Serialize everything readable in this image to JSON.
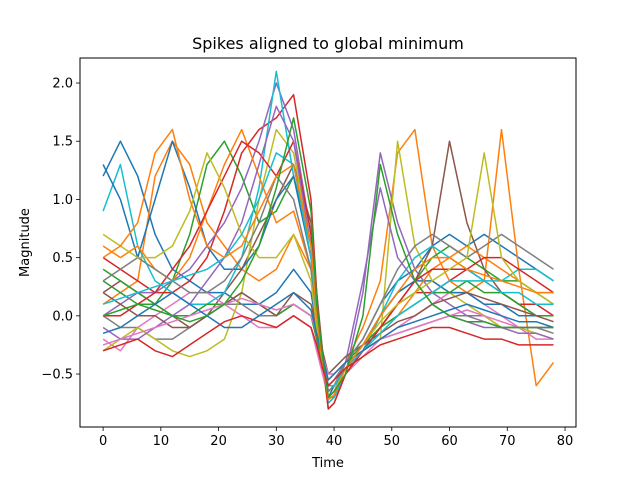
{
  "chart_data": {
    "type": "line",
    "title": "Spikes aligned to global minimum",
    "xlabel": "Time",
    "ylabel": "Magnitude",
    "xlim": [
      -4.0,
      81.9
    ],
    "ylim": [
      -0.955,
      2.215
    ],
    "xticks": [
      0,
      10,
      20,
      30,
      40,
      50,
      60,
      70,
      80
    ],
    "yticks": [
      -0.5,
      0.0,
      0.5,
      1.0,
      1.5,
      2.0
    ],
    "xtick_labels": [
      "0",
      "10",
      "20",
      "30",
      "40",
      "50",
      "60",
      "70",
      "80"
    ],
    "ytick_labels": [
      "−0.5",
      "0.0",
      "0.5",
      "1.0",
      "1.5",
      "2.0"
    ],
    "grid": false,
    "legend": "none",
    "minimum_alignment_x": 39,
    "series_colors": [
      "#1f77b4",
      "#ff7f0e",
      "#2ca02c",
      "#d62728",
      "#9467bd",
      "#8c564b",
      "#e377c2",
      "#7f7f7f",
      "#bcbd22",
      "#17becf"
    ],
    "x": [
      0,
      3,
      6,
      9,
      12,
      15,
      18,
      21,
      24,
      27,
      30,
      33,
      36,
      37,
      38,
      39,
      40,
      42,
      45,
      48,
      51,
      54,
      57,
      60,
      63,
      66,
      69,
      72,
      75,
      78
    ],
    "series": [
      {
        "values": [
          1.2,
          1.5,
          1.2,
          0.7,
          0.4,
          0.3,
          0.2,
          0.2,
          0.1,
          0.1,
          0.2,
          0.4,
          0.2,
          -0.1,
          -0.4,
          -0.7,
          -0.6,
          -0.4,
          -0.2,
          0.1,
          0.3,
          0.4,
          0.6,
          0.7,
          0.6,
          0.7,
          0.6,
          0.5,
          0.4,
          0.3
        ]
      },
      {
        "values": [
          0.1,
          0.2,
          0.3,
          1.2,
          1.5,
          1.3,
          0.8,
          0.6,
          0.4,
          0.3,
          0.4,
          0.7,
          0.4,
          0.0,
          -0.3,
          -0.6,
          -0.6,
          -0.4,
          -0.1,
          0.3,
          1.4,
          1.6,
          0.6,
          0.3,
          0.2,
          0.3,
          1.6,
          0.4,
          -0.6,
          -0.4
        ]
      },
      {
        "values": [
          0.3,
          0.2,
          0.1,
          0.1,
          0.3,
          0.7,
          1.3,
          1.5,
          1.2,
          0.8,
          0.9,
          1.2,
          0.6,
          0.1,
          -0.3,
          -0.7,
          -0.7,
          -0.5,
          -0.3,
          0.0,
          0.2,
          0.3,
          0.5,
          0.6,
          0.5,
          0.4,
          0.3,
          0.3,
          0.2,
          0.1
        ]
      },
      {
        "values": [
          0.5,
          0.4,
          0.3,
          0.2,
          0.2,
          0.3,
          0.5,
          0.9,
          1.4,
          1.6,
          1.7,
          1.9,
          1.0,
          0.2,
          -0.4,
          -0.8,
          -0.75,
          -0.5,
          -0.3,
          -0.1,
          0.1,
          0.2,
          0.2,
          0.3,
          0.4,
          0.3,
          0.2,
          0.1,
          0.1,
          0.0
        ]
      },
      {
        "values": [
          0.0,
          0.1,
          0.2,
          0.2,
          0.3,
          0.4,
          0.6,
          0.8,
          1.1,
          1.5,
          2.0,
          1.6,
          0.7,
          0.1,
          -0.4,
          -0.75,
          -0.7,
          -0.5,
          0.2,
          1.4,
          0.8,
          0.4,
          0.2,
          0.1,
          0.0,
          0.0,
          -0.1,
          -0.1,
          -0.1,
          -0.1
        ]
      },
      {
        "values": [
          0.2,
          0.3,
          0.2,
          0.1,
          0.0,
          -0.1,
          0.0,
          0.2,
          0.4,
          0.7,
          1.0,
          1.3,
          0.8,
          0.2,
          -0.3,
          -0.65,
          -0.6,
          -0.45,
          -0.3,
          -0.1,
          0.1,
          0.3,
          0.6,
          1.5,
          0.8,
          0.4,
          0.2,
          0.1,
          0.0,
          0.0
        ]
      },
      {
        "values": [
          -0.2,
          -0.3,
          -0.1,
          0.0,
          0.1,
          0.2,
          0.2,
          0.1,
          0.0,
          -0.1,
          -0.1,
          0.0,
          -0.1,
          -0.3,
          -0.5,
          -0.7,
          -0.65,
          -0.5,
          -0.35,
          -0.2,
          -0.1,
          0.0,
          0.1,
          0.2,
          0.2,
          0.1,
          0.0,
          -0.1,
          -0.2,
          -0.2
        ]
      },
      {
        "values": [
          0.0,
          -0.1,
          -0.1,
          -0.2,
          -0.2,
          -0.1,
          0.0,
          0.1,
          0.1,
          0.0,
          0.0,
          0.1,
          0.0,
          -0.2,
          -0.45,
          -0.6,
          -0.55,
          -0.4,
          -0.3,
          -0.2,
          -0.15,
          -0.1,
          -0.05,
          0.0,
          0.0,
          -0.05,
          -0.1,
          -0.1,
          -0.1,
          -0.15
        ]
      },
      {
        "values": [
          -0.3,
          -0.2,
          -0.1,
          -0.2,
          -0.3,
          -0.35,
          -0.3,
          -0.2,
          0.2,
          1.0,
          1.6,
          1.4,
          0.6,
          0.0,
          -0.4,
          -0.7,
          -0.65,
          -0.45,
          -0.3,
          -0.2,
          1.5,
          0.6,
          0.3,
          0.2,
          0.1,
          0.0,
          -0.1,
          -0.1,
          -0.15,
          -0.2
        ]
      },
      {
        "values": [
          0.9,
          1.3,
          0.6,
          0.3,
          0.2,
          0.1,
          0.1,
          0.2,
          0.5,
          1.1,
          2.1,
          1.2,
          0.5,
          0.0,
          -0.4,
          -0.75,
          -0.7,
          -0.5,
          -0.3,
          0.0,
          0.3,
          0.5,
          0.6,
          0.5,
          0.4,
          0.3,
          0.3,
          0.4,
          0.4,
          0.3
        ]
      },
      {
        "values": [
          1.3,
          1.0,
          0.5,
          1.0,
          1.5,
          1.1,
          0.6,
          0.4,
          0.4,
          0.6,
          1.0,
          1.2,
          0.5,
          0.0,
          -0.35,
          -0.65,
          -0.6,
          -0.45,
          -0.25,
          0.0,
          0.2,
          0.3,
          0.3,
          0.2,
          0.2,
          0.1,
          0.1,
          0.0,
          0.0,
          0.0
        ]
      },
      {
        "values": [
          0.6,
          0.5,
          0.6,
          0.4,
          0.3,
          0.5,
          0.9,
          1.3,
          1.6,
          1.2,
          0.8,
          0.9,
          0.4,
          -0.05,
          -0.4,
          -0.7,
          -0.65,
          -0.5,
          -0.3,
          -0.1,
          0.0,
          0.2,
          0.4,
          0.5,
          0.6,
          0.5,
          0.4,
          0.3,
          0.2,
          0.2
        ]
      },
      {
        "values": [
          0.4,
          0.3,
          0.2,
          0.1,
          0.0,
          0.0,
          0.1,
          0.1,
          0.2,
          0.1,
          0.0,
          0.1,
          0.0,
          -0.2,
          -0.4,
          -0.55,
          -0.5,
          -0.4,
          -0.25,
          -0.1,
          0.0,
          0.1,
          0.2,
          0.2,
          0.3,
          0.2,
          0.2,
          0.1,
          0.0,
          0.0
        ]
      },
      {
        "values": [
          0.0,
          0.0,
          0.1,
          0.2,
          0.4,
          0.6,
          0.9,
          1.2,
          1.5,
          1.4,
          1.2,
          1.5,
          0.7,
          0.1,
          -0.35,
          -0.8,
          -0.75,
          -0.5,
          -0.3,
          -0.1,
          0.1,
          0.3,
          0.4,
          0.4,
          0.4,
          0.5,
          0.5,
          0.4,
          0.3,
          0.2
        ]
      },
      {
        "values": [
          -0.1,
          -0.2,
          -0.2,
          -0.1,
          0.0,
          0.1,
          0.3,
          0.5,
          0.8,
          1.3,
          1.8,
          1.5,
          0.6,
          0.0,
          -0.4,
          -0.7,
          -0.65,
          -0.4,
          0.3,
          1.1,
          0.5,
          0.3,
          0.1,
          0.0,
          -0.05,
          -0.1,
          -0.1,
          -0.15,
          -0.15,
          -0.2
        ]
      },
      {
        "values": [
          0.2,
          0.1,
          0.0,
          0.0,
          -0.1,
          -0.1,
          0.0,
          0.1,
          0.2,
          0.1,
          0.0,
          0.2,
          0.1,
          -0.1,
          -0.3,
          -0.5,
          -0.45,
          -0.35,
          -0.25,
          -0.15,
          -0.05,
          0.0,
          0.1,
          0.15,
          0.2,
          0.15,
          0.1,
          0.05,
          0.0,
          -0.05
        ]
      },
      {
        "values": [
          -0.25,
          -0.2,
          -0.15,
          -0.1,
          -0.05,
          0.0,
          0.05,
          0.1,
          0.15,
          0.1,
          0.05,
          0.1,
          0.0,
          -0.15,
          -0.35,
          -0.5,
          -0.5,
          -0.4,
          -0.3,
          -0.2,
          -0.15,
          -0.1,
          -0.05,
          0.0,
          0.05,
          0.0,
          -0.05,
          -0.1,
          -0.1,
          -0.1
        ]
      },
      {
        "values": [
          0.3,
          0.4,
          0.5,
          0.4,
          0.3,
          0.2,
          0.2,
          0.3,
          0.5,
          0.8,
          1.2,
          1.0,
          0.4,
          -0.05,
          -0.4,
          -0.65,
          -0.6,
          -0.4,
          -0.2,
          0.1,
          0.4,
          0.6,
          0.7,
          0.6,
          0.5,
          0.6,
          0.7,
          0.6,
          0.5,
          0.4
        ]
      },
      {
        "values": [
          0.7,
          0.6,
          0.5,
          0.5,
          0.6,
          0.9,
          1.4,
          1.1,
          0.7,
          0.5,
          0.5,
          0.7,
          0.3,
          -0.1,
          -0.4,
          -0.7,
          -0.65,
          -0.45,
          -0.25,
          -0.05,
          0.1,
          0.2,
          0.3,
          0.4,
          0.5,
          1.4,
          0.5,
          0.3,
          0.2,
          0.1
        ]
      },
      {
        "values": [
          0.1,
          0.15,
          0.2,
          0.25,
          0.3,
          0.35,
          0.4,
          0.5,
          0.7,
          1.0,
          1.4,
          1.3,
          0.5,
          0.0,
          -0.35,
          -0.6,
          -0.6,
          -0.45,
          -0.3,
          -0.15,
          0.0,
          0.1,
          0.2,
          0.3,
          0.3,
          0.3,
          0.2,
          0.2,
          0.1,
          0.1
        ]
      },
      {
        "values": [
          -0.15,
          -0.1,
          0.0,
          0.1,
          0.2,
          0.1,
          0.0,
          -0.1,
          -0.1,
          0.0,
          0.1,
          0.2,
          0.05,
          -0.15,
          -0.35,
          -0.55,
          -0.5,
          -0.4,
          -0.3,
          -0.2,
          -0.1,
          -0.05,
          0.0,
          0.05,
          0.1,
          0.05,
          0.0,
          -0.05,
          -0.05,
          -0.1
        ]
      },
      {
        "values": [
          0.5,
          0.6,
          0.8,
          1.4,
          1.6,
          1.0,
          0.6,
          0.5,
          0.6,
          0.9,
          1.2,
          1.3,
          0.6,
          0.0,
          -0.4,
          -0.72,
          -0.68,
          -0.45,
          -0.25,
          0.0,
          0.2,
          0.4,
          0.5,
          0.5,
          0.4,
          0.35,
          0.3,
          0.25,
          0.2,
          0.2
        ]
      },
      {
        "values": [
          0.0,
          0.05,
          0.1,
          0.05,
          0.0,
          -0.05,
          0.0,
          0.1,
          0.3,
          0.6,
          1.1,
          1.7,
          0.9,
          0.1,
          -0.35,
          -0.7,
          -0.65,
          -0.5,
          0.0,
          1.3,
          0.7,
          0.3,
          0.1,
          0.0,
          -0.05,
          -0.05,
          -0.1,
          -0.1,
          -0.1,
          -0.1
        ]
      },
      {
        "values": [
          -0.3,
          -0.25,
          -0.2,
          -0.3,
          -0.35,
          -0.25,
          -0.15,
          -0.05,
          0.0,
          -0.05,
          -0.1,
          0.0,
          -0.1,
          -0.25,
          -0.45,
          -0.6,
          -0.55,
          -0.45,
          -0.35,
          -0.25,
          -0.2,
          -0.15,
          -0.1,
          -0.1,
          -0.15,
          -0.2,
          -0.2,
          -0.25,
          -0.25,
          -0.25
        ]
      }
    ]
  }
}
